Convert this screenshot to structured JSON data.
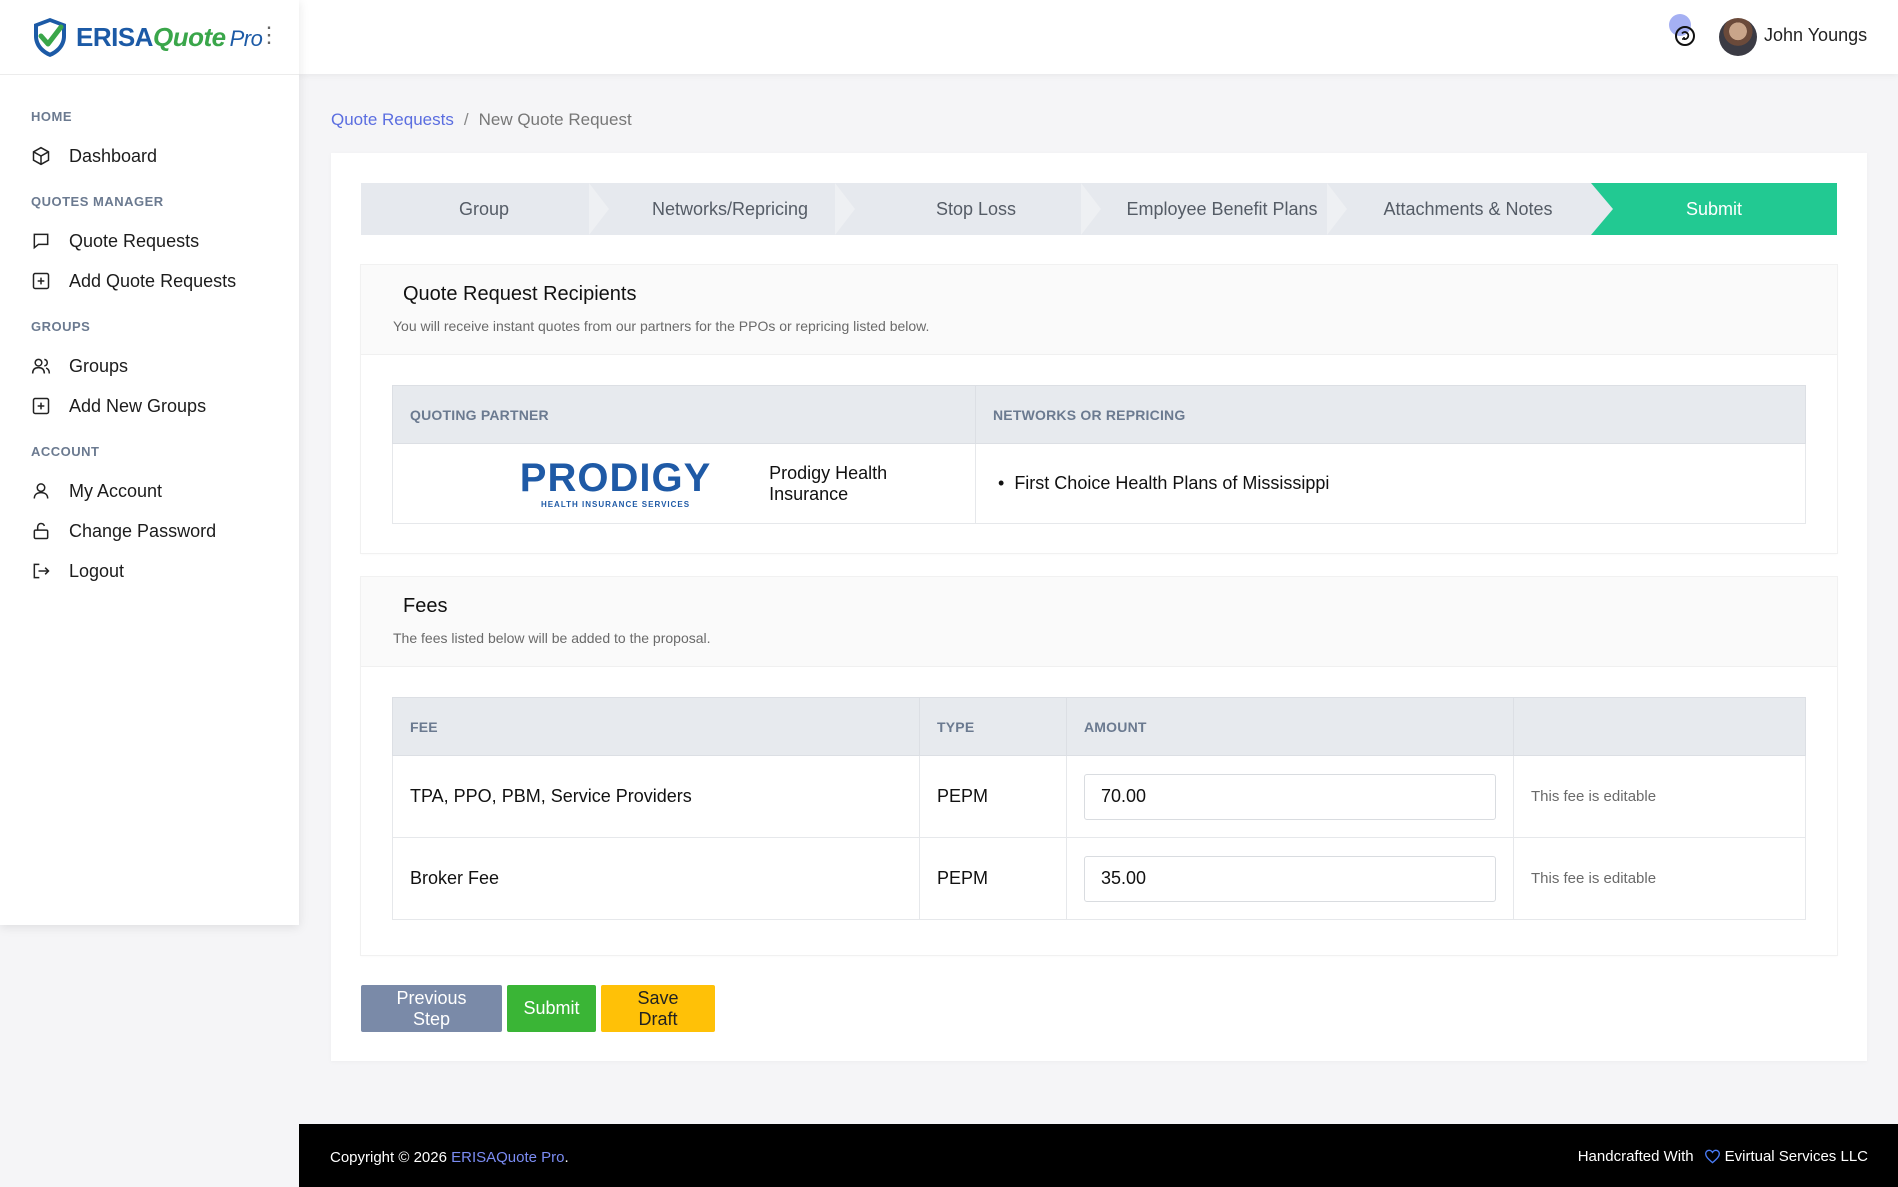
{
  "brand": {
    "erisa": "ERISA",
    "quote": "Quote",
    "pro": "Pro",
    "kebab": "⋮"
  },
  "sidebar": {
    "sections": [
      {
        "heading": "HOME",
        "items": [
          {
            "label": "Dashboard",
            "icon": "cube-icon"
          }
        ]
      },
      {
        "heading": "QUOTES MANAGER",
        "items": [
          {
            "label": "Quote Requests",
            "icon": "chat-icon"
          },
          {
            "label": "Add Quote Requests",
            "icon": "plus-square-icon"
          }
        ]
      },
      {
        "heading": "GROUPS",
        "items": [
          {
            "label": "Groups",
            "icon": "users-icon"
          },
          {
            "label": "Add New Groups",
            "icon": "plus-square-icon"
          }
        ]
      },
      {
        "heading": "ACCOUNT",
        "items": [
          {
            "label": "My Account",
            "icon": "user-icon"
          },
          {
            "label": "Change Password",
            "icon": "unlock-icon"
          },
          {
            "label": "Logout",
            "icon": "logout-icon"
          }
        ]
      }
    ]
  },
  "topbar": {
    "user_name": "John Youngs"
  },
  "breadcrumb": {
    "parent": "Quote Requests",
    "separator": "/",
    "current": "New Quote Request"
  },
  "steps": [
    "Group",
    "Networks/Repricing",
    "Stop Loss",
    "Employee Benefit Plans",
    "Attachments & Notes",
    "Submit"
  ],
  "recipients": {
    "title": "Quote Request Recipients",
    "subtitle": "You will receive instant quotes from our partners for the PPOs or repricing listed below.",
    "headers": [
      "QUOTING PARTNER",
      "NETWORKS OR REPRICING"
    ],
    "partner_logo_word": "PRODIGY",
    "partner_logo_tagline": "HEALTH INSURANCE SERVICES",
    "partner_name": "Prodigy Health Insurance",
    "network": "First Choice Health Plans of Mississippi"
  },
  "fees": {
    "title": "Fees",
    "subtitle": "The fees listed below will be added to the proposal.",
    "headers": [
      "FEE",
      "TYPE",
      "AMOUNT",
      ""
    ],
    "rows": [
      {
        "fee": "TPA, PPO, PBM, Service Providers",
        "type": "PEPM",
        "amount": "70.00",
        "note": "This fee is editable"
      },
      {
        "fee": "Broker Fee",
        "type": "PEPM",
        "amount": "35.00",
        "note": "This fee is editable"
      }
    ]
  },
  "buttons": {
    "previous": "Previous Step",
    "submit": "Submit",
    "save_draft": "Save Draft"
  },
  "footer": {
    "copyright": "Copyright © 2026",
    "brand_link": "ERISAQuote Pro",
    "period": ".",
    "handcrafted": "Handcrafted With",
    "company": "Evirtual Services LLC"
  },
  "colors": {
    "accent": "#22c992",
    "link": "#5b6ee0",
    "prev_button": "#7a8aa8",
    "submit_button": "#3ab536",
    "draft_button": "#ffc107"
  }
}
